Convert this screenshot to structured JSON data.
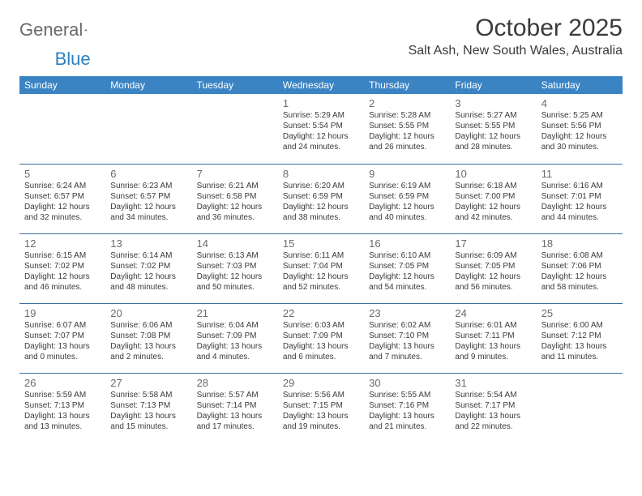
{
  "logo": {
    "general": "General",
    "blue": "Blue"
  },
  "title": "October 2025",
  "location": "Salt Ash, New South Wales, Australia",
  "colors": {
    "header_bg": "#3b84c4",
    "header_text": "#ffffff",
    "rule": "#3b6fa0",
    "daynum": "#6a6a6a",
    "body_text": "#3a3a3a",
    "logo_gray": "#6a6a6a",
    "logo_blue": "#2b7fbf"
  },
  "weekdays": [
    "Sunday",
    "Monday",
    "Tuesday",
    "Wednesday",
    "Thursday",
    "Friday",
    "Saturday"
  ],
  "weeks": [
    [
      null,
      null,
      null,
      {
        "d": "1",
        "sr": "5:29 AM",
        "ss": "5:54 PM",
        "dl": "12 hours and 24 minutes."
      },
      {
        "d": "2",
        "sr": "5:28 AM",
        "ss": "5:55 PM",
        "dl": "12 hours and 26 minutes."
      },
      {
        "d": "3",
        "sr": "5:27 AM",
        "ss": "5:55 PM",
        "dl": "12 hours and 28 minutes."
      },
      {
        "d": "4",
        "sr": "5:25 AM",
        "ss": "5:56 PM",
        "dl": "12 hours and 30 minutes."
      }
    ],
    [
      {
        "d": "5",
        "sr": "6:24 AM",
        "ss": "6:57 PM",
        "dl": "12 hours and 32 minutes."
      },
      {
        "d": "6",
        "sr": "6:23 AM",
        "ss": "6:57 PM",
        "dl": "12 hours and 34 minutes."
      },
      {
        "d": "7",
        "sr": "6:21 AM",
        "ss": "6:58 PM",
        "dl": "12 hours and 36 minutes."
      },
      {
        "d": "8",
        "sr": "6:20 AM",
        "ss": "6:59 PM",
        "dl": "12 hours and 38 minutes."
      },
      {
        "d": "9",
        "sr": "6:19 AM",
        "ss": "6:59 PM",
        "dl": "12 hours and 40 minutes."
      },
      {
        "d": "10",
        "sr": "6:18 AM",
        "ss": "7:00 PM",
        "dl": "12 hours and 42 minutes."
      },
      {
        "d": "11",
        "sr": "6:16 AM",
        "ss": "7:01 PM",
        "dl": "12 hours and 44 minutes."
      }
    ],
    [
      {
        "d": "12",
        "sr": "6:15 AM",
        "ss": "7:02 PM",
        "dl": "12 hours and 46 minutes."
      },
      {
        "d": "13",
        "sr": "6:14 AM",
        "ss": "7:02 PM",
        "dl": "12 hours and 48 minutes."
      },
      {
        "d": "14",
        "sr": "6:13 AM",
        "ss": "7:03 PM",
        "dl": "12 hours and 50 minutes."
      },
      {
        "d": "15",
        "sr": "6:11 AM",
        "ss": "7:04 PM",
        "dl": "12 hours and 52 minutes."
      },
      {
        "d": "16",
        "sr": "6:10 AM",
        "ss": "7:05 PM",
        "dl": "12 hours and 54 minutes."
      },
      {
        "d": "17",
        "sr": "6:09 AM",
        "ss": "7:05 PM",
        "dl": "12 hours and 56 minutes."
      },
      {
        "d": "18",
        "sr": "6:08 AM",
        "ss": "7:06 PM",
        "dl": "12 hours and 58 minutes."
      }
    ],
    [
      {
        "d": "19",
        "sr": "6:07 AM",
        "ss": "7:07 PM",
        "dl": "13 hours and 0 minutes."
      },
      {
        "d": "20",
        "sr": "6:06 AM",
        "ss": "7:08 PM",
        "dl": "13 hours and 2 minutes."
      },
      {
        "d": "21",
        "sr": "6:04 AM",
        "ss": "7:09 PM",
        "dl": "13 hours and 4 minutes."
      },
      {
        "d": "22",
        "sr": "6:03 AM",
        "ss": "7:09 PM",
        "dl": "13 hours and 6 minutes."
      },
      {
        "d": "23",
        "sr": "6:02 AM",
        "ss": "7:10 PM",
        "dl": "13 hours and 7 minutes."
      },
      {
        "d": "24",
        "sr": "6:01 AM",
        "ss": "7:11 PM",
        "dl": "13 hours and 9 minutes."
      },
      {
        "d": "25",
        "sr": "6:00 AM",
        "ss": "7:12 PM",
        "dl": "13 hours and 11 minutes."
      }
    ],
    [
      {
        "d": "26",
        "sr": "5:59 AM",
        "ss": "7:13 PM",
        "dl": "13 hours and 13 minutes."
      },
      {
        "d": "27",
        "sr": "5:58 AM",
        "ss": "7:13 PM",
        "dl": "13 hours and 15 minutes."
      },
      {
        "d": "28",
        "sr": "5:57 AM",
        "ss": "7:14 PM",
        "dl": "13 hours and 17 minutes."
      },
      {
        "d": "29",
        "sr": "5:56 AM",
        "ss": "7:15 PM",
        "dl": "13 hours and 19 minutes."
      },
      {
        "d": "30",
        "sr": "5:55 AM",
        "ss": "7:16 PM",
        "dl": "13 hours and 21 minutes."
      },
      {
        "d": "31",
        "sr": "5:54 AM",
        "ss": "7:17 PM",
        "dl": "13 hours and 22 minutes."
      },
      null
    ]
  ]
}
